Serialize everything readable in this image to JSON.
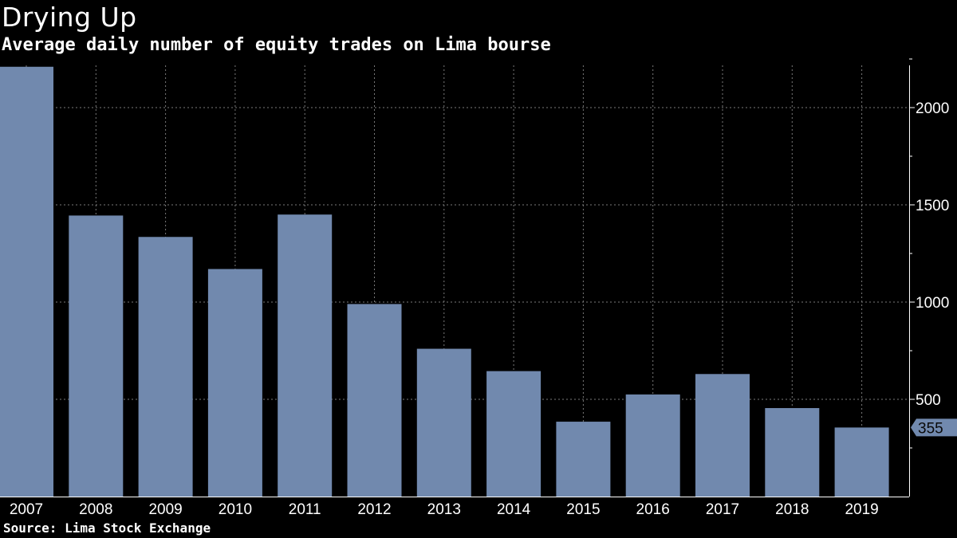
{
  "title": "Drying Up",
  "subtitle": "Average daily number of equity trades on Lima bourse",
  "source": "Source: Lima Stock Exchange",
  "colors": {
    "bar": "#7189ae",
    "grid": "#7a7a7a",
    "background": "#000000",
    "text": "#ffffff"
  },
  "chart_data": {
    "type": "bar",
    "title": "Drying Up",
    "subtitle": "Average daily number of equity trades on Lima bourse",
    "xlabel": "",
    "ylabel": "",
    "categories": [
      "2007",
      "2008",
      "2009",
      "2010",
      "2011",
      "2012",
      "2013",
      "2014",
      "2015",
      "2016",
      "2017",
      "2018",
      "2019"
    ],
    "values": [
      2210,
      1445,
      1335,
      1170,
      1450,
      990,
      760,
      645,
      385,
      525,
      630,
      455,
      355
    ],
    "ylim": [
      0,
      2210
    ],
    "yticks": [
      500,
      1000,
      1500,
      2000
    ],
    "ytick_labels": [
      "500",
      "1000",
      "1500",
      "2000"
    ],
    "y_axis_position": "right",
    "grid": true,
    "last_value_label": "355"
  }
}
